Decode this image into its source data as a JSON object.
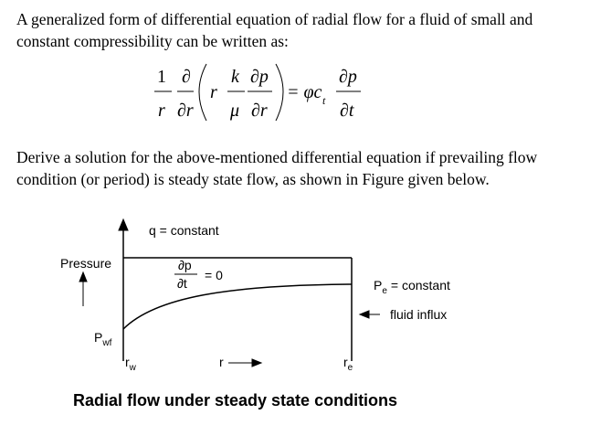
{
  "paragraph_1": "A generalized form of differential equation of radial flow for a fluid of small and constant compressibility can be written as:",
  "equation": {
    "left_factor": {
      "numerator": "1",
      "denominator": "r"
    },
    "operator": {
      "numerator": "∂",
      "denominator": "∂r"
    },
    "inner_r": "r",
    "mobility": {
      "numerator": "k",
      "denominator": "μ"
    },
    "gradient": {
      "numerator": "∂p",
      "denominator": "∂r"
    },
    "equals": "= φc",
    "subscript": "t",
    "time_derivative": {
      "numerator": "∂p",
      "denominator": "∂t"
    }
  },
  "paragraph_2": "Derive a solution for the above-mentioned differential equation if prevailing flow condition (or period) is steady state flow, as shown in Figure given below.",
  "figure": {
    "rate_label": "q = constant",
    "y_axis_label": "Pressure",
    "derivative": {
      "numerator": "∂p",
      "denominator": "∂t",
      "equals": "= 0"
    },
    "pe_label": {
      "symbol": "P",
      "subscript": "e",
      "text": "= constant"
    },
    "influx_label": "fluid influx",
    "pwf_label": {
      "symbol": "P",
      "subscript": "wf"
    },
    "rw_label": {
      "symbol": "r",
      "subscript": "w"
    },
    "r_label": "r",
    "re_label": {
      "symbol": "r",
      "subscript": "e"
    },
    "caption": "Radial flow under steady state conditions"
  }
}
